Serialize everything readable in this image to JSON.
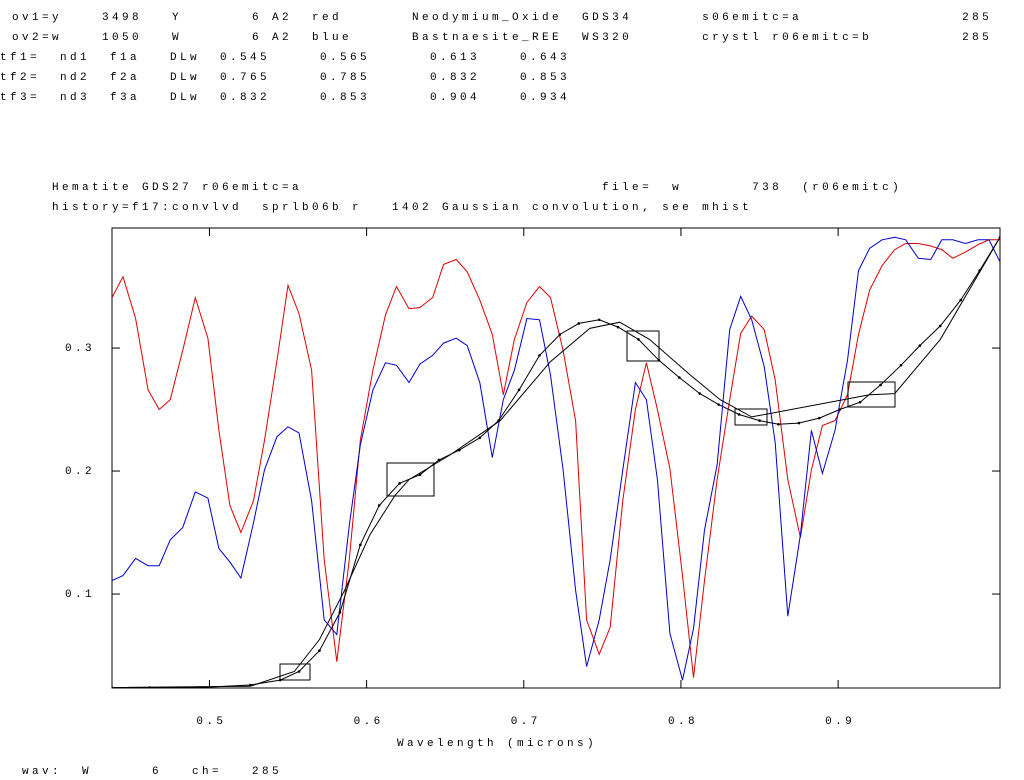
{
  "header": {
    "lines": [
      " ov1=y    3498   Y       6 A2  red       Neodymium_Oxide  GDS34       s06emitc=a                285",
      " ov2=w    1050   W       6 A2  blue      Bastnaesite_REE  WS320       crystl r06emitc=b         285",
      "tf1=  nd1  f1a   DLw  0.545     0.565      0.613    0.643",
      "tf2=  nd2  f2a   DLw  0.765     0.785      0.832    0.853",
      "tf3=  nd3  f3a   DLw  0.832     0.853      0.904    0.934"
    ]
  },
  "chart_data": {
    "type": "line",
    "title": "Hematite GDS27 r06emitc=a                              file=  w       738  (r06emitc)",
    "subtitle": "history=f17:convlvd  sprlb06b r   1402 Gaussian convolution, see mhist",
    "xlabel": "Wavelength (microns)",
    "xlim": [
      0.438,
      1.003
    ],
    "ylim": [
      0.0236,
      0.3976
    ],
    "xticks": [
      0.5,
      0.6,
      0.7,
      0.8,
      0.9
    ],
    "yticks": [
      0.1,
      0.2,
      0.3
    ],
    "series": [
      {
        "color": "#e00000",
        "x": [
          0.438,
          0.445,
          0.453,
          0.461,
          0.468,
          0.475,
          0.483,
          0.491,
          0.499,
          0.506,
          0.513,
          0.52,
          0.528,
          0.535,
          0.543,
          0.55,
          0.557,
          0.565,
          0.573,
          0.581,
          0.589,
          0.596,
          0.604,
          0.612,
          0.619,
          0.627,
          0.634,
          0.642,
          0.649,
          0.657,
          0.664,
          0.672,
          0.68,
          0.687,
          0.694,
          0.702,
          0.71,
          0.717,
          0.725,
          0.733,
          0.74,
          0.748,
          0.755,
          0.763,
          0.771,
          0.778,
          0.785,
          0.793,
          0.801,
          0.808,
          0.815,
          0.823,
          0.831,
          0.838,
          0.845,
          0.853,
          0.86,
          0.868,
          0.876,
          0.883,
          0.89,
          0.898,
          0.906,
          0.913,
          0.92,
          0.928,
          0.936,
          0.943,
          0.951,
          0.959,
          0.966,
          0.973,
          0.981,
          0.989,
          0.996,
          1.003
        ],
        "values": [
          0.341,
          0.358,
          0.324,
          0.266,
          0.25,
          0.258,
          0.298,
          0.341,
          0.308,
          0.233,
          0.172,
          0.15,
          0.176,
          0.225,
          0.29,
          0.351,
          0.328,
          0.282,
          0.128,
          0.045,
          0.128,
          0.225,
          0.282,
          0.327,
          0.35,
          0.332,
          0.333,
          0.341,
          0.368,
          0.372,
          0.362,
          0.339,
          0.311,
          0.262,
          0.307,
          0.337,
          0.35,
          0.341,
          0.298,
          0.241,
          0.079,
          0.051,
          0.073,
          0.176,
          0.25,
          0.288,
          0.25,
          0.202,
          0.115,
          0.032,
          0.111,
          0.193,
          0.258,
          0.312,
          0.326,
          0.315,
          0.274,
          0.193,
          0.146,
          0.201,
          0.237,
          0.241,
          0.262,
          0.311,
          0.347,
          0.367,
          0.38,
          0.385,
          0.385,
          0.383,
          0.38,
          0.373,
          0.378,
          0.384,
          0.388,
          0.388
        ]
      },
      {
        "color": "#0000d0",
        "x": [
          0.438,
          0.445,
          0.453,
          0.461,
          0.468,
          0.475,
          0.483,
          0.491,
          0.499,
          0.506,
          0.513,
          0.52,
          0.528,
          0.535,
          0.543,
          0.55,
          0.557,
          0.565,
          0.573,
          0.581,
          0.589,
          0.596,
          0.604,
          0.612,
          0.619,
          0.627,
          0.634,
          0.642,
          0.649,
          0.657,
          0.664,
          0.672,
          0.68,
          0.687,
          0.694,
          0.702,
          0.71,
          0.717,
          0.725,
          0.733,
          0.74,
          0.748,
          0.755,
          0.763,
          0.771,
          0.778,
          0.785,
          0.793,
          0.801,
          0.808,
          0.815,
          0.823,
          0.831,
          0.838,
          0.845,
          0.853,
          0.86,
          0.868,
          0.876,
          0.883,
          0.89,
          0.898,
          0.906,
          0.913,
          0.92,
          0.928,
          0.936,
          0.943,
          0.951,
          0.959,
          0.966,
          0.973,
          0.981,
          0.989,
          0.996,
          1.003
        ],
        "values": [
          0.111,
          0.115,
          0.129,
          0.123,
          0.123,
          0.144,
          0.154,
          0.183,
          0.178,
          0.137,
          0.126,
          0.113,
          0.158,
          0.201,
          0.228,
          0.236,
          0.231,
          0.176,
          0.079,
          0.067,
          0.156,
          0.221,
          0.266,
          0.288,
          0.286,
          0.272,
          0.287,
          0.294,
          0.304,
          0.308,
          0.302,
          0.272,
          0.211,
          0.258,
          0.282,
          0.324,
          0.323,
          0.278,
          0.201,
          0.103,
          0.041,
          0.079,
          0.128,
          0.201,
          0.272,
          0.258,
          0.193,
          0.068,
          0.03,
          0.072,
          0.152,
          0.205,
          0.315,
          0.342,
          0.323,
          0.285,
          0.223,
          0.082,
          0.148,
          0.233,
          0.198,
          0.233,
          0.29,
          0.363,
          0.381,
          0.388,
          0.39,
          0.388,
          0.373,
          0.372,
          0.388,
          0.388,
          0.385,
          0.388,
          0.388,
          0.37
        ]
      },
      {
        "color": "#000000",
        "markers": true,
        "x": [
          0.438,
          0.462,
          0.494,
          0.526,
          0.545,
          0.557,
          0.57,
          0.583,
          0.596,
          0.608,
          0.621,
          0.634,
          0.646,
          0.659,
          0.672,
          0.684,
          0.697,
          0.71,
          0.723,
          0.735,
          0.748,
          0.76,
          0.773,
          0.786,
          0.799,
          0.812,
          0.824,
          0.837,
          0.85,
          0.862,
          0.875,
          0.888,
          0.901,
          0.914,
          0.927,
          0.94,
          0.952,
          0.965,
          0.978,
          0.99,
          1.003
        ],
        "values": [
          0.024,
          0.024,
          0.024,
          0.026,
          0.03,
          0.037,
          0.054,
          0.085,
          0.14,
          0.172,
          0.19,
          0.197,
          0.209,
          0.217,
          0.227,
          0.241,
          0.266,
          0.294,
          0.311,
          0.32,
          0.323,
          0.317,
          0.307,
          0.29,
          0.276,
          0.263,
          0.254,
          0.246,
          0.241,
          0.238,
          0.239,
          0.243,
          0.25,
          0.256,
          0.27,
          0.286,
          0.302,
          0.318,
          0.339,
          0.363,
          0.39
        ]
      },
      {
        "color": "#000000",
        "x": [
          0.438,
          0.526,
          0.554,
          0.57,
          0.586,
          0.602,
          0.618,
          0.627,
          0.653,
          0.685,
          0.717,
          0.742,
          0.761,
          0.78,
          0.806,
          0.825,
          0.845,
          0.92,
          0.936,
          0.965,
          1.003
        ],
        "values": [
          0.024,
          0.025,
          0.037,
          0.063,
          0.103,
          0.148,
          0.18,
          0.193,
          0.213,
          0.241,
          0.289,
          0.316,
          0.321,
          0.307,
          0.278,
          0.258,
          0.244,
          0.262,
          0.263,
          0.307,
          0.39
        ]
      }
    ]
  },
  "footer": " wav:  W      6   ch=   285"
}
